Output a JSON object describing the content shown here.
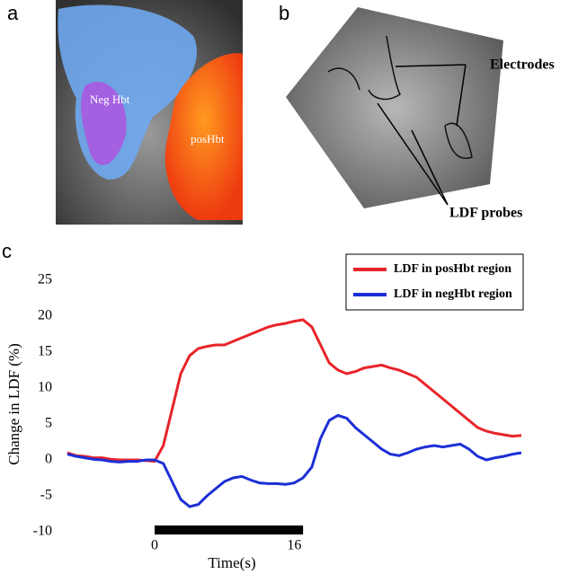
{
  "panels": {
    "a": {
      "label": "a",
      "annotations": [
        "Neg Hbt",
        "posHbt"
      ]
    },
    "b": {
      "label": "b",
      "annotations": [
        "Electrodes",
        "LDF probes"
      ]
    },
    "c": {
      "label": "c"
    }
  },
  "chart_data": {
    "type": "line",
    "xlabel": "Time(s)",
    "ylabel": "Change in LDF (%)",
    "x": [
      -10,
      -9,
      -8,
      -7,
      -6,
      -5,
      -4,
      -3,
      -2,
      -1,
      0,
      1,
      2,
      3,
      4,
      5,
      6,
      7,
      8,
      9,
      10,
      11,
      12,
      13,
      14,
      15,
      16,
      17,
      18,
      19,
      20,
      21,
      22,
      23,
      24,
      25,
      26,
      27,
      28,
      29,
      30,
      31,
      32,
      33,
      34,
      35,
      36,
      37,
      38,
      39,
      40,
      41,
      42
    ],
    "series": [
      {
        "name": "LDF in posHbt region",
        "color": "#e8242a",
        "values": [
          1,
          0.6,
          0.5,
          0.3,
          0.3,
          0.1,
          0,
          0,
          0,
          -0.1,
          -0.2,
          2,
          7,
          12,
          14.5,
          15.5,
          15.8,
          16,
          16,
          16.5,
          17,
          17.5,
          18,
          18.5,
          18.8,
          19,
          19.3,
          19.5,
          18.5,
          16,
          13.5,
          12.5,
          12,
          12.3,
          12.8,
          13,
          13.2,
          12.8,
          12.5,
          12,
          11.5,
          10.5,
          9.5,
          8.5,
          7.5,
          6.5,
          5.5,
          4.5,
          4,
          3.7,
          3.5,
          3.3,
          3.4
        ]
      },
      {
        "name": "LDF in negHbt region",
        "color": "#1c2fd6",
        "values": [
          0.8,
          0.5,
          0.3,
          0.1,
          0,
          -0.2,
          -0.3,
          -0.2,
          -0.2,
          0,
          0,
          -0.5,
          -3,
          -5.5,
          -6.5,
          -6.2,
          -5,
          -4,
          -3,
          -2.5,
          -2.3,
          -2.8,
          -3.2,
          -3.3,
          -3.3,
          -3.4,
          -3.2,
          -2.5,
          -1,
          3,
          5.5,
          6.2,
          5.8,
          4.5,
          3.5,
          2.5,
          1.5,
          0.8,
          0.6,
          1,
          1.5,
          1.8,
          2,
          1.8,
          2,
          2.2,
          1.5,
          0.5,
          0,
          0.3,
          0.5,
          0.8,
          1
        ]
      }
    ],
    "stimulus": [
      0,
      17
    ],
    "xlim": [
      -10.5,
      42
    ],
    "xticks": [
      0,
      16
    ],
    "ylim": [
      -10,
      25
    ],
    "yticks": [
      -10,
      -5,
      0,
      5,
      10,
      15,
      20,
      25
    ],
    "legend": "upper right"
  }
}
